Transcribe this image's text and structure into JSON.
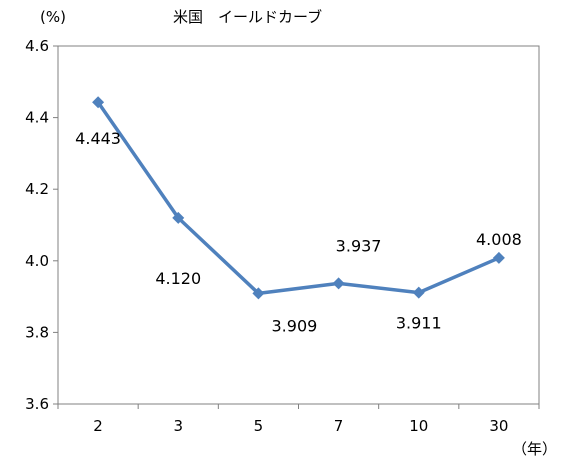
{
  "chart_data": {
    "type": "line",
    "title": "米国　イールドカーブ",
    "ylabel": "(%)",
    "xlabel": "（年）",
    "categories": [
      "2",
      "3",
      "5",
      "7",
      "10",
      "30"
    ],
    "series": [
      {
        "values": [
          4.443,
          4.12,
          3.909,
          3.937,
          3.911,
          4.008
        ],
        "labels": [
          "4.443",
          "4.120",
          "3.909",
          "3.937",
          "3.911",
          "4.008"
        ],
        "color": "#4f81bd"
      }
    ],
    "ylim": [
      3.6,
      4.6
    ],
    "yticks": [
      3.6,
      3.8,
      4.0,
      4.2,
      4.4,
      4.6
    ],
    "ytick_labels": [
      "3.6",
      "3.8",
      "4.0",
      "4.2",
      "4.4",
      "4.6"
    ],
    "grid": false,
    "marker": "diamond"
  }
}
